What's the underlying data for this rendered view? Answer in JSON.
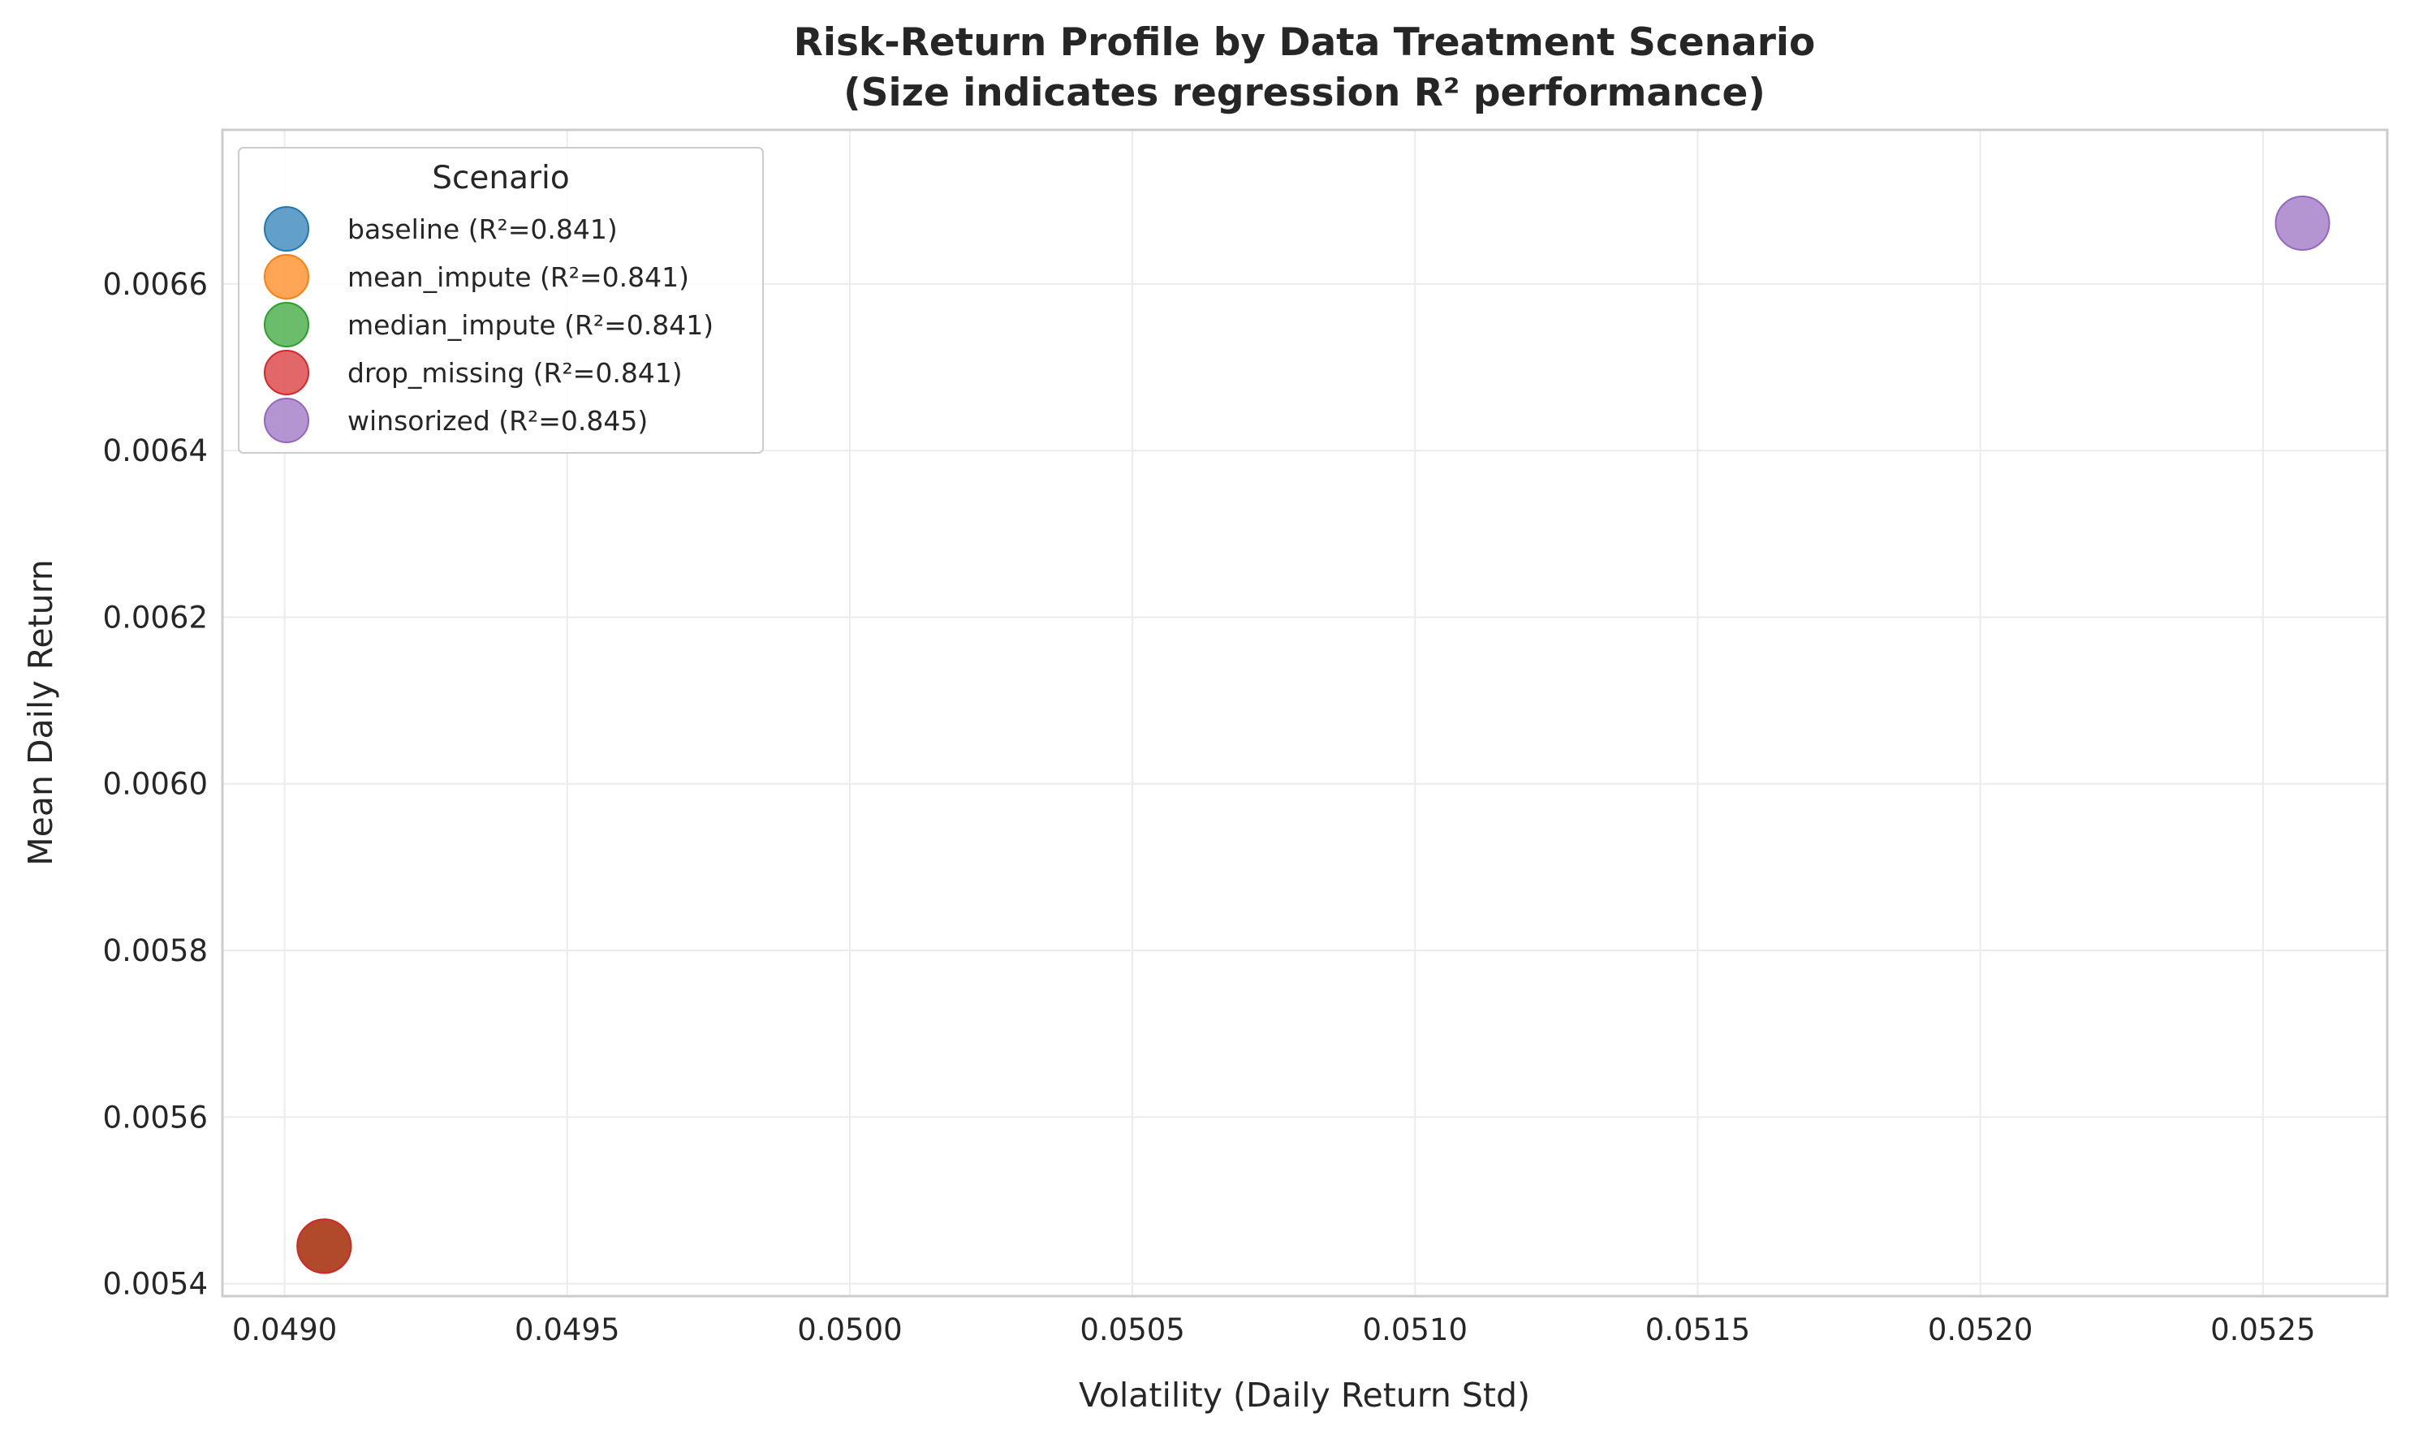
{
  "chart_data": {
    "type": "scatter",
    "title_line1": "Risk-Return Profile by Data Treatment Scenario",
    "title_line2": "(Size indicates regression R² performance)",
    "xlabel": "Volatility (Daily Return Std)",
    "ylabel": "Mean Daily Return",
    "xlim": [
      0.04889,
      0.05272
    ],
    "ylim": [
      0.005385,
      0.006785
    ],
    "x_ticks": [
      "0.0490",
      "0.0495",
      "0.0500",
      "0.0505",
      "0.0510",
      "0.0515",
      "0.0520",
      "0.0525"
    ],
    "y_ticks": [
      "0.0054",
      "0.0056",
      "0.0058",
      "0.0060",
      "0.0062",
      "0.0064",
      "0.0066"
    ],
    "grid": true,
    "legend_title": "Scenario",
    "legend_position": "upper left",
    "series": [
      {
        "name": "baseline (R²=0.841)",
        "color": "#1f77b4",
        "x": 0.04907,
        "y": 0.005445,
        "r2": 0.841
      },
      {
        "name": "mean_impute (R²=0.841)",
        "color": "#ff7f0e",
        "x": 0.04907,
        "y": 0.005445,
        "r2": 0.841
      },
      {
        "name": "median_impute (R²=0.841)",
        "color": "#2ca02c",
        "x": 0.04907,
        "y": 0.005445,
        "r2": 0.841
      },
      {
        "name": "drop_missing (R²=0.841)",
        "color": "#d62728",
        "x": 0.04907,
        "y": 0.005445,
        "r2": 0.841
      },
      {
        "name": "winsorized (R²=0.845)",
        "color": "#9467bd",
        "x": 0.05257,
        "y": 0.006673,
        "r2": 0.845
      }
    ]
  }
}
